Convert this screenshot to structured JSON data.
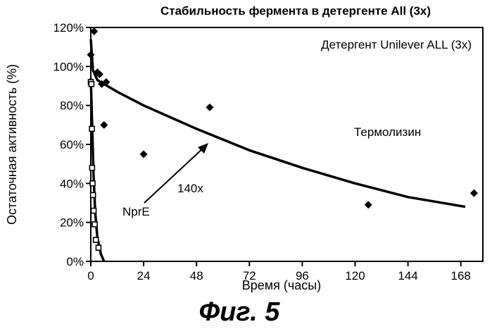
{
  "figure_caption": "Фиг. 5",
  "chart_data": {
    "type": "scatter",
    "title": "Стабильность фермента в детергенте All (3x)",
    "xlabel": "Время (часы)",
    "ylabel": "Остаточная активность (%)",
    "xlim": [
      0,
      178
    ],
    "ylim": [
      0,
      120
    ],
    "x_ticks": [
      0,
      24,
      48,
      72,
      96,
      120,
      144,
      168
    ],
    "x_tick_labels": [
      "0",
      "24",
      "48",
      "72",
      "96",
      "120",
      "144",
      "168"
    ],
    "y_ticks": [
      0,
      20,
      40,
      60,
      80,
      100,
      120
    ],
    "y_tick_labels": [
      "0%",
      "20%",
      "40%",
      "60%",
      "80%",
      "100%",
      "120%"
    ],
    "grid": false,
    "series": [
      {
        "name": "Термолизин",
        "marker": "diamond",
        "color": "#000000",
        "points": [
          {
            "x": 0,
            "y": 106
          },
          {
            "x": 1.5,
            "y": 118
          },
          {
            "x": 3,
            "y": 97
          },
          {
            "x": 4,
            "y": 96
          },
          {
            "x": 5,
            "y": 91
          },
          {
            "x": 6,
            "y": 70
          },
          {
            "x": 7,
            "y": 92
          },
          {
            "x": 24,
            "y": 55
          },
          {
            "x": 54,
            "y": 79
          },
          {
            "x": 126,
            "y": 29
          },
          {
            "x": 174,
            "y": 35
          }
        ],
        "fit": [
          {
            "x": 0,
            "y": 114
          },
          {
            "x": 1,
            "y": 98
          },
          {
            "x": 3,
            "y": 93
          },
          {
            "x": 6,
            "y": 91
          },
          {
            "x": 12,
            "y": 87
          },
          {
            "x": 24,
            "y": 80
          },
          {
            "x": 48,
            "y": 68
          },
          {
            "x": 72,
            "y": 57
          },
          {
            "x": 96,
            "y": 48
          },
          {
            "x": 120,
            "y": 40
          },
          {
            "x": 144,
            "y": 33
          },
          {
            "x": 170,
            "y": 28
          }
        ]
      },
      {
        "name": "NprE",
        "marker": "square-open",
        "color": "#000000",
        "points": [
          {
            "x": 0,
            "y": 92
          },
          {
            "x": 0.3,
            "y": 91
          },
          {
            "x": 0.5,
            "y": 68
          },
          {
            "x": 0.6,
            "y": 48
          },
          {
            "x": 0.8,
            "y": 40
          },
          {
            "x": 1,
            "y": 34
          },
          {
            "x": 1.3,
            "y": 26
          },
          {
            "x": 1.8,
            "y": 19
          },
          {
            "x": 2.3,
            "y": 11
          },
          {
            "x": 3.5,
            "y": 7
          }
        ],
        "fit": [
          {
            "x": 0,
            "y": 94
          },
          {
            "x": 0.6,
            "y": 70
          },
          {
            "x": 1.2,
            "y": 45
          },
          {
            "x": 2,
            "y": 25
          },
          {
            "x": 3,
            "y": 12
          },
          {
            "x": 4.5,
            "y": 4
          },
          {
            "x": 6,
            "y": 0
          }
        ]
      }
    ],
    "annotations": [
      {
        "text": "Детергент Unilever ALL (3x)"
      },
      {
        "text": "Термолизин"
      },
      {
        "text": "NprE"
      },
      {
        "text": "140x",
        "arrow": true
      }
    ]
  }
}
